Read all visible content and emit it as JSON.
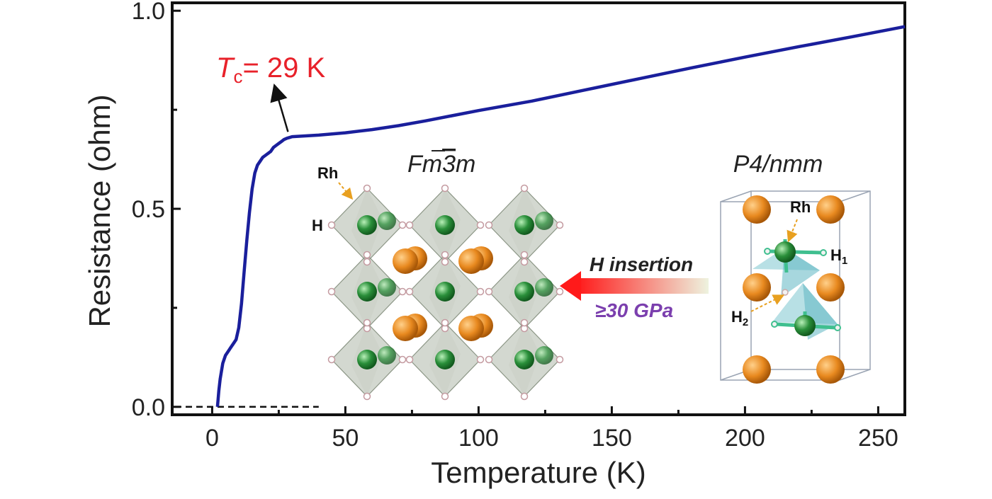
{
  "chart_data": {
    "type": "line",
    "title": "",
    "xlabel": "Temperature (K)",
    "ylabel": "Resistance (ohm)",
    "xlim": [
      -15,
      260
    ],
    "ylim": [
      -0.02,
      1.02
    ],
    "x_ticks": [
      0,
      50,
      100,
      150,
      200,
      250
    ],
    "y_ticks": [
      0.0,
      0.5,
      1.0
    ],
    "x_tick_labels": [
      "0",
      "50",
      "100",
      "150",
      "200",
      "250"
    ],
    "y_tick_labels": [
      "0.0",
      "0.5",
      "1.0"
    ],
    "grid": false,
    "series": [
      {
        "color": "#1a1f9c",
        "x": [
          2,
          2.5,
          3,
          4,
          5,
          6,
          7,
          8,
          9,
          10,
          11,
          12,
          13,
          14,
          15,
          16,
          17,
          18,
          19,
          20,
          21,
          22,
          23,
          24,
          25,
          26,
          27,
          28,
          29,
          30,
          35,
          40,
          50,
          60,
          70,
          80,
          90,
          100,
          120,
          140,
          160,
          180,
          200,
          220,
          240,
          260
        ],
        "y": [
          0.0,
          0.04,
          0.07,
          0.11,
          0.13,
          0.14,
          0.15,
          0.16,
          0.17,
          0.2,
          0.26,
          0.34,
          0.42,
          0.49,
          0.55,
          0.59,
          0.61,
          0.62,
          0.63,
          0.635,
          0.64,
          0.645,
          0.655,
          0.66,
          0.665,
          0.67,
          0.675,
          0.678,
          0.68,
          0.682,
          0.684,
          0.686,
          0.692,
          0.7,
          0.71,
          0.722,
          0.735,
          0.748,
          0.772,
          0.8,
          0.828,
          0.856,
          0.883,
          0.909,
          0.934,
          0.96
        ]
      }
    ],
    "reference_line": {
      "style": "dashed",
      "color": "#111111",
      "x": [
        -15,
        40
      ],
      "y": [
        0,
        0
      ]
    },
    "annotations": [
      {
        "text_main": "T",
        "text_sub": "c",
        "text_rest": "= 29 K",
        "color": "#e8212a",
        "arrow_to": {
          "x": 29,
          "y": 0.68
        }
      }
    ]
  },
  "inset": {
    "left_structure": {
      "title_pre": "Fm",
      "title_bar": "3",
      "title_post": "m",
      "label_rh": "Rh",
      "label_h": "H"
    },
    "right_structure": {
      "title": "P4/nmm",
      "label_rh": "Rh",
      "label_h1_main": "H",
      "label_h1_sub": "1",
      "label_h2_main": "H",
      "label_h2_sub": "2"
    },
    "arrow_label_top": "H insertion",
    "arrow_label_bottom": "≥30 GPa",
    "colors": {
      "rh_atom": "#2a8f3a",
      "la_atom": "#e8891f",
      "h_atom": "#f0f0f0",
      "octahedron": "#9da897",
      "tetrahedron": "#7ec6cf",
      "arrow_start": "#ff1a1a",
      "arrow_end": "#eef3df",
      "gpa_text": "#7b3fae"
    }
  }
}
